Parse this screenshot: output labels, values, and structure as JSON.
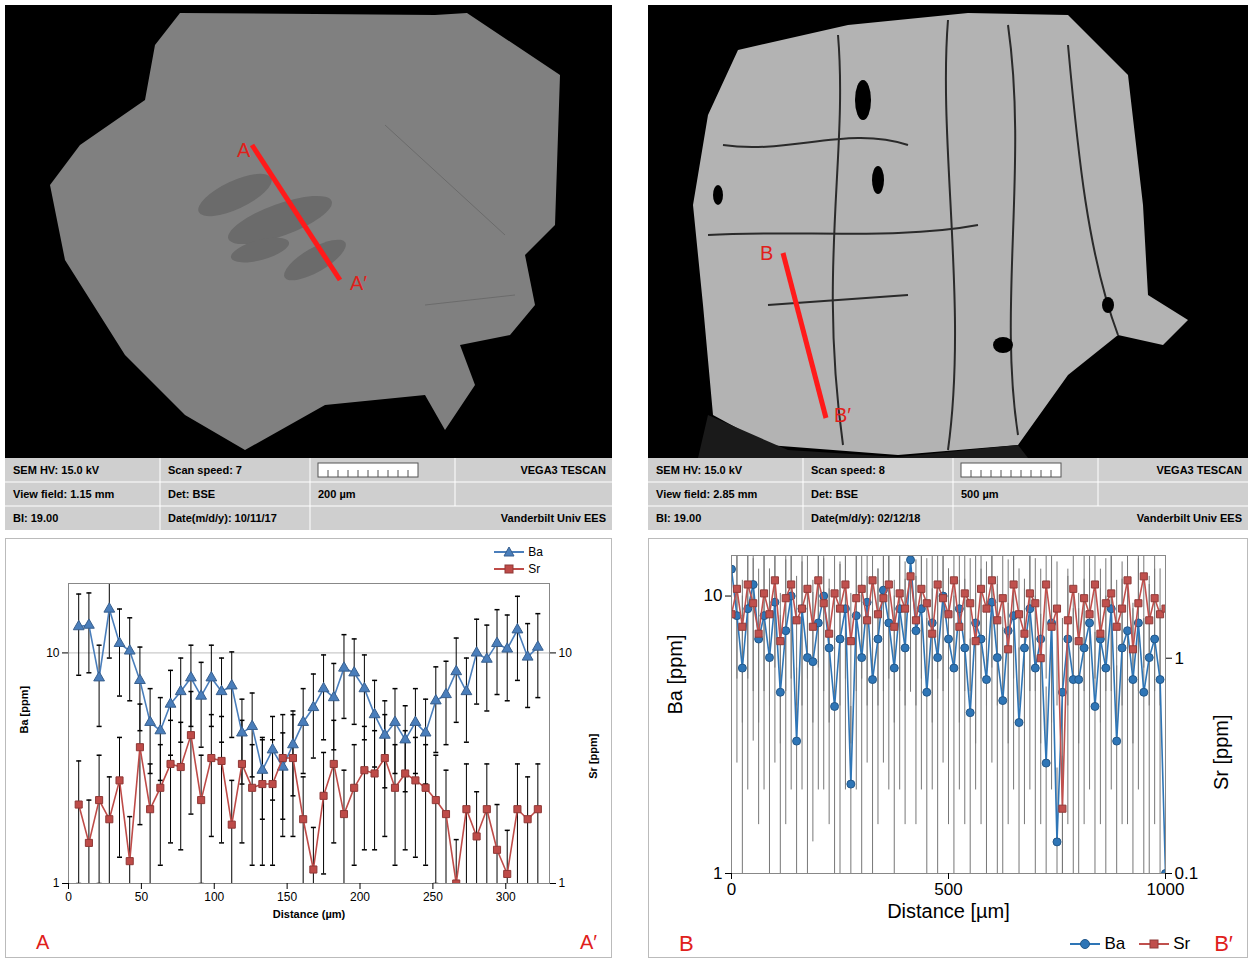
{
  "images": [
    {
      "info_bar": {
        "hv": "SEM HV: 15.0 kV",
        "scan_speed": "Scan speed: 7",
        "brand": "VEGA3 TESCAN",
        "view_field": "View field: 1.15 mm",
        "detector": "Det: BSE",
        "scale_bar": "200 µm",
        "bi": "BI: 19.00",
        "date": "Date(m/d/y): 10/11/17",
        "lab": "Vanderbilt Univ EES"
      },
      "line_labels": [
        "A",
        "A′"
      ]
    },
    {
      "info_bar": {
        "hv": "SEM HV: 15.0 kV",
        "scan_speed": "Scan speed: 8",
        "brand": "VEGA3 TESCAN",
        "view_field": "View field: 2.85 mm",
        "detector": "Det: BSE",
        "scale_bar": "500 µm",
        "bi": "BI: 19.00",
        "date": "Date(m/d/y): 02/12/18",
        "lab": "Vanderbilt Univ EES"
      },
      "line_labels": [
        "B",
        "B′"
      ]
    }
  ],
  "chart_data": [
    {
      "type": "line",
      "log": "y",
      "x_label": "Distance (µm)",
      "y_label": "Ba [ppm]",
      "y2_label": "Sr [ppm]",
      "xlim": [
        0,
        330
      ],
      "xticks": [
        0,
        50,
        100,
        150,
        200,
        250,
        300
      ],
      "ylim": [
        1,
        20
      ],
      "yticks": [
        1,
        10
      ],
      "y2lim": [
        1,
        20
      ],
      "y2ticks": [
        1,
        10
      ],
      "grid": true,
      "legend": "top-right",
      "ends": [
        "A",
        "A′"
      ],
      "x": [
        7,
        14,
        21,
        28,
        35,
        42,
        49,
        56,
        63,
        70,
        77,
        84,
        91,
        98,
        105,
        112,
        119,
        126,
        133,
        140,
        147,
        154,
        161,
        168,
        175,
        182,
        189,
        196,
        203,
        210,
        217,
        224,
        231,
        238,
        245,
        252,
        259,
        266,
        273,
        280,
        287,
        294,
        301,
        308,
        315,
        322
      ],
      "series": [
        {
          "name": "Ba",
          "color": "#4a7ebb",
          "marker": "triangle",
          "line_style": "solid",
          "values": [
            13,
            13.2,
            7.8,
            15.5,
            11,
            10.2,
            7.6,
            5,
            4.6,
            6,
            6.8,
            7.8,
            6.5,
            7.8,
            6.8,
            7.2,
            4.5,
            4.8,
            3.1,
            3.8,
            3.2,
            4,
            5,
            5.8,
            7,
            6.4,
            8.6,
            8.2,
            7,
            5.4,
            4.4,
            5,
            4.2,
            5,
            4.5,
            6.2,
            6.6,
            8.3,
            6.8,
            10,
            9.4,
            11,
            10.4,
            12.6,
            9.6,
            10.6
          ],
          "errors": [
            5,
            5,
            3,
            6,
            4.5,
            4,
            3,
            2,
            1.8,
            2.4,
            2.7,
            3,
            2.6,
            3,
            2.7,
            2.9,
            1.8,
            1.9,
            1.2,
            1.5,
            1.3,
            1.6,
            2,
            2.3,
            2.8,
            2.6,
            3.4,
            3.3,
            2.8,
            2.2,
            1.8,
            2,
            1.7,
            2,
            1.8,
            2.5,
            2.6,
            3.3,
            2.7,
            4,
            3.8,
            4.4,
            4.2,
            5,
            3.8,
            4.2
          ]
        },
        {
          "name": "Sr",
          "color": "#be4b48",
          "marker": "square",
          "line_style": "solid",
          "axis": "y2",
          "values": [
            2.2,
            1.5,
            2.3,
            1.9,
            2.8,
            1.25,
            3.9,
            2.1,
            2.6,
            3.3,
            3.2,
            4.4,
            2.3,
            3.5,
            3.4,
            1.8,
            3.3,
            2.6,
            2.7,
            2.7,
            3.5,
            3.5,
            1.9,
            1.15,
            2.4,
            3.3,
            2,
            2.6,
            3.1,
            3,
            3.5,
            2.6,
            3,
            2.8,
            2.6,
            2.3,
            2,
            1.0,
            2.1,
            1.6,
            2.1,
            1.4,
            1.1,
            2.1,
            1.9,
            2.1
          ],
          "errors": [
            1.2,
            0.8,
            1.3,
            1,
            1.5,
            0.7,
            2.1,
            1.2,
            1.4,
            1.8,
            1.8,
            2.4,
            1.3,
            1.9,
            1.9,
            1,
            1.8,
            1.4,
            1.5,
            1.5,
            1.9,
            1.9,
            1,
            0.6,
            1.3,
            1.8,
            1.1,
            1.4,
            1.7,
            1.6,
            1.9,
            1.4,
            1.6,
            1.5,
            1.4,
            1.3,
            1.1,
            0.55,
            1.2,
            0.9,
            1.2,
            0.8,
            0.6,
            1.2,
            1,
            1.2
          ]
        }
      ]
    },
    {
      "type": "line",
      "log": "y",
      "x_label": "Distance [µm]",
      "y_label": "Ba [ppm]",
      "y2_label": "Sr [ppm]",
      "xlim": [
        0,
        1000
      ],
      "xticks": [
        0,
        500,
        1000
      ],
      "ylim": [
        1,
        14
      ],
      "yticks": [
        1,
        10
      ],
      "y2lim": [
        0.1,
        3
      ],
      "y2ticks": [
        0.1,
        1
      ],
      "grid": false,
      "legend": "bottom-right",
      "ends": [
        "B",
        "B′"
      ],
      "x": [
        0,
        12.5,
        25,
        37.5,
        50,
        62.5,
        75,
        87.5,
        100,
        112.5,
        125,
        137.5,
        150,
        162.5,
        175,
        187.5,
        200,
        212.5,
        225,
        237.5,
        250,
        262.5,
        275,
        287.5,
        300,
        312.5,
        325,
        337.5,
        350,
        362.5,
        375,
        387.5,
        400,
        412.5,
        425,
        437.5,
        450,
        462.5,
        475,
        487.5,
        500,
        512.5,
        525,
        537.5,
        550,
        562.5,
        575,
        587.5,
        600,
        612.5,
        625,
        637.5,
        650,
        662.5,
        675,
        687.5,
        700,
        712.5,
        725,
        737.5,
        750,
        762.5,
        775,
        787.5,
        800,
        812.5,
        825,
        837.5,
        850,
        862.5,
        875,
        887.5,
        900,
        912.5,
        925,
        937.5,
        950,
        962.5,
        975,
        987.5,
        1000
      ],
      "series": [
        {
          "name": "Ba",
          "color": "#2e75b6",
          "marker": "circle",
          "line_style": "solid",
          "values": [
            12.5,
            8.5,
            5.5,
            9,
            11,
            7,
            8.5,
            6,
            9.5,
            4.5,
            7.5,
            10,
            3,
            9,
            6,
            5.8,
            8,
            10,
            6.5,
            4,
            7,
            9,
            2.1,
            8.5,
            6,
            9.5,
            5,
            7,
            10.5,
            8,
            5.5,
            9,
            6.5,
            13.5,
            7.5,
            9,
            4.5,
            8,
            6,
            10,
            7,
            5.5,
            9,
            6.5,
            3.8,
            8,
            7,
            5,
            9.5,
            6,
            4.2,
            7.5,
            8.5,
            3.5,
            6.5,
            9,
            5.5,
            7,
            2.5,
            8,
            1.3,
            4.5,
            7,
            5,
            5,
            6.5,
            8,
            4,
            7,
            5.5,
            9,
            3,
            6.5,
            7.5,
            5,
            8,
            4.5,
            6,
            7,
            5,
            1
          ],
          "errors": [
            9,
            6,
            4.5,
            7,
            8,
            5.5,
            6.5,
            5,
            7,
            4,
            6,
            8,
            2.5,
            7,
            5,
            4.5,
            6,
            8,
            5,
            3.5,
            6,
            7,
            1.9,
            6.5,
            5,
            7,
            4,
            5.5,
            8,
            6,
            4.5,
            7,
            5,
            9,
            6,
            7,
            3.8,
            6,
            5,
            7.5,
            5.5,
            4.5,
            7,
            5,
            3.2,
            6,
            5.5,
            4,
            7,
            5,
            3.5,
            6,
            6.5,
            3,
            5,
            7,
            4.5,
            5.5,
            2.2,
            6,
            1.1,
            3.8,
            5.5,
            4,
            4,
            5,
            6,
            3.4,
            5.5,
            4.5,
            7,
            2.6,
            5,
            6,
            4,
            6,
            3.8,
            5,
            5.5,
            4,
            0.9
          ]
        },
        {
          "name": "Sr",
          "color": "#c0504d",
          "marker": "square",
          "line_style": "solid",
          "axis": "y2",
          "values": [
            1.6,
            2.1,
            1.4,
            2.2,
            1.8,
            1.3,
            2.0,
            1.6,
            2.3,
            1.2,
            1.9,
            2.2,
            1.5,
            1.7,
            2.1,
            1.4,
            2.3,
            1.8,
            1.3,
            2.0,
            1.7,
            2.2,
            1.2,
            1.9,
            2.1,
            1.5,
            2.3,
            1.6,
            1.9,
            2.2,
            1.4,
            2.0,
            1.7,
            2.4,
            1.5,
            2.1,
            1.8,
            1.3,
            2.2,
            1.9,
            1.6,
            2.3,
            1.4,
            2.0,
            1.8,
            1.2,
            2.1,
            1.7,
            2.3,
            1.5,
            1.9,
            1.1,
            2.2,
            1.6,
            1.3,
            2.0,
            1.8,
            1.0,
            2.2,
            1.4,
            1.7,
            0.2,
            1.5,
            2.1,
            1.2,
            1.9,
            1.6,
            2.2,
            1.3,
            1.8,
            2.0,
            1.4,
            1.7,
            2.3,
            1.1,
            1.8,
            2.4,
            1.5,
            1.9,
            1.6,
            1.7
          ],
          "errors": [
            1.0,
            1.3,
            0.9,
            1.4,
            1.1,
            0.8,
            1.3,
            1.0,
            1.4,
            0.8,
            1.2,
            1.4,
            0.9,
            1.1,
            1.3,
            0.9,
            1.4,
            1.1,
            0.8,
            1.3,
            1.1,
            1.4,
            0.8,
            1.2,
            1.3,
            0.9,
            1.4,
            1.0,
            1.2,
            1.4,
            0.9,
            1.3,
            1.1,
            1.5,
            0.9,
            1.3,
            1.1,
            0.8,
            1.4,
            1.2,
            1.0,
            1.4,
            0.9,
            1.3,
            1.1,
            0.8,
            1.3,
            1.1,
            1.4,
            0.9,
            1.2,
            0.7,
            1.4,
            1.0,
            0.8,
            1.3,
            1.1,
            0.6,
            1.4,
            0.9,
            1.1,
            0.15,
            0.9,
            1.3,
            0.8,
            1.2,
            1.0,
            1.4,
            0.8,
            1.1,
            1.3,
            0.9,
            1.1,
            1.4,
            0.7,
            1.1,
            1.5,
            0.9,
            1.2,
            1.0,
            1.1
          ]
        }
      ]
    }
  ]
}
